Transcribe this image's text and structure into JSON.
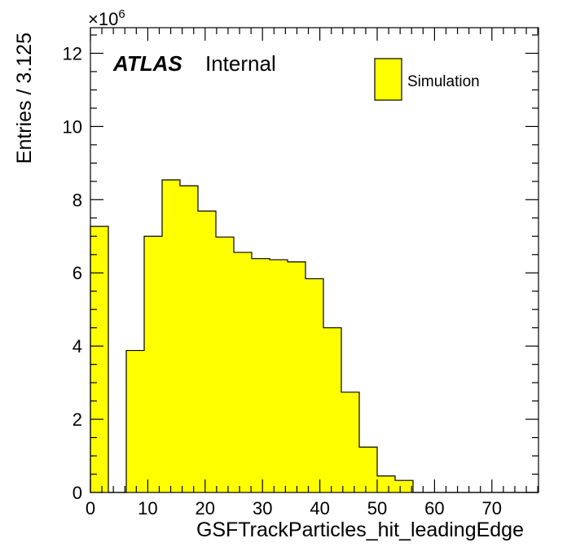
{
  "chart_data": {
    "type": "bar",
    "xlabel": "GSFTrackParticles_hit_leadingEdge",
    "ylabel": "Entries / 3.125",
    "y_multiplier": "×10",
    "y_multiplier_exponent": "6",
    "xlim": [
      0,
      78.125
    ],
    "ylim": [
      0,
      12.7
    ],
    "bin_width": 3.125,
    "x_ticks": [
      0,
      10,
      20,
      30,
      40,
      50,
      60,
      70
    ],
    "x_tick_labels": [
      "0",
      "10",
      "20",
      "30",
      "40",
      "50",
      "60",
      "70"
    ],
    "y_ticks": [
      0,
      2,
      4,
      6,
      8,
      10,
      12
    ],
    "y_tick_labels": [
      "0",
      "2",
      "4",
      "6",
      "8",
      "10",
      "12"
    ],
    "bin_edges": [
      0,
      3.125,
      6.25,
      9.375,
      12.5,
      15.625,
      18.75,
      21.875,
      25,
      28.125,
      31.25,
      34.375,
      37.5,
      40.625,
      43.75,
      46.875,
      50,
      53.125,
      56.25,
      59.375,
      62.5,
      65.625,
      68.75,
      71.875,
      75,
      78.125
    ],
    "series": [
      {
        "name": "Simulation",
        "color": "#ffff00",
        "values": [
          7.27,
          0,
          3.88,
          7.0,
          8.54,
          8.38,
          7.69,
          6.98,
          6.56,
          6.39,
          6.36,
          6.3,
          5.84,
          4.5,
          2.74,
          1.24,
          0.45,
          0.33,
          0,
          0,
          0,
          0,
          0,
          0,
          0
        ]
      }
    ],
    "annotations": {
      "experiment": "ATLAS",
      "status": "Internal"
    },
    "legend": {
      "placement": "top-right",
      "entries": [
        "Simulation"
      ]
    },
    "grid": false
  }
}
